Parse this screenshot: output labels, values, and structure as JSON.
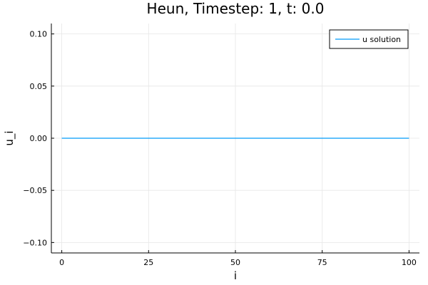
{
  "chart_data": {
    "type": "line",
    "title": "Heun, Timestep: 1, t: 0.0",
    "xlabel": "i",
    "ylabel": "u_i",
    "xlim": [
      -3,
      103
    ],
    "ylim": [
      -0.11,
      0.11
    ],
    "x_ticks": [
      0,
      25,
      50,
      75,
      100
    ],
    "x_tick_labels": [
      "0",
      "25",
      "50",
      "75",
      "100"
    ],
    "y_ticks": [
      0.1,
      0.05,
      0.0,
      -0.05,
      -0.1
    ],
    "y_tick_labels": [
      "0.10",
      "0.05",
      "0.00",
      "−0.05",
      "−0.10"
    ],
    "grid": true,
    "legend_position": "top-right",
    "series": [
      {
        "name": "u solution",
        "color": "#009AFA",
        "x": [
          0,
          100
        ],
        "y": [
          0.0,
          0.0
        ]
      }
    ]
  }
}
